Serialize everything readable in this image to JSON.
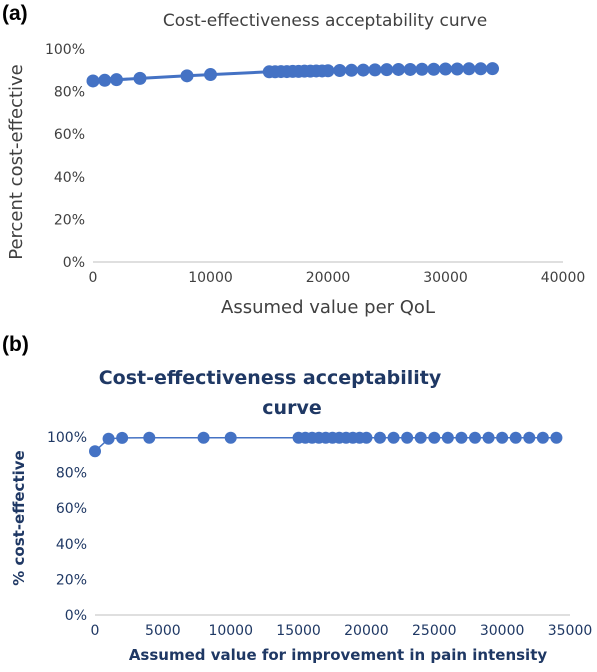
{
  "panels": {
    "a": {
      "label": "(a)"
    },
    "b": {
      "label": "(b)"
    }
  },
  "chart_data": [
    {
      "type": "line",
      "title": "Cost-effectiveness acceptability curve",
      "xlabel": "Assumed value per QoL",
      "ylabel": "Percent cost-effective",
      "xlim": [
        0,
        40000
      ],
      "ylim": [
        0,
        100
      ],
      "x_ticks": [
        "0",
        "10000",
        "20000",
        "30000",
        "40000"
      ],
      "y_ticks": [
        "0%",
        "20%",
        "40%",
        "60%",
        "80%",
        "100%"
      ],
      "grid": false,
      "series": [
        {
          "color": "#4472c4",
          "x": [
            0,
            1000,
            2000,
            4000,
            8000,
            10000,
            15000,
            15500,
            16000,
            16500,
            17000,
            17500,
            18000,
            18500,
            19000,
            19500,
            20000,
            21000,
            22000,
            23000,
            24000,
            25000,
            26000,
            27000,
            28000,
            29000,
            30000,
            31000,
            32000,
            33000,
            34000
          ],
          "y": [
            85,
            85.3,
            85.6,
            86.2,
            87.4,
            88,
            89.3,
            89.3,
            89.4,
            89.4,
            89.5,
            89.5,
            89.6,
            89.6,
            89.7,
            89.7,
            89.8,
            89.9,
            90,
            90.1,
            90.2,
            90.3,
            90.4,
            90.4,
            90.5,
            90.5,
            90.6,
            90.6,
            90.7,
            90.7,
            90.8
          ]
        }
      ]
    },
    {
      "type": "line",
      "title": "Cost-effectiveness acceptability curve",
      "title_lines": [
        "Cost-effectiveness acceptability",
        "curve"
      ],
      "xlabel": "Assumed value for improvement in pain intensity",
      "ylabel": "% cost-effective",
      "xlim": [
        0,
        35000
      ],
      "ylim": [
        0,
        100
      ],
      "x_ticks": [
        "0",
        "5000",
        "10000",
        "15000",
        "20000",
        "25000",
        "30000",
        "35000"
      ],
      "y_ticks": [
        "0%",
        "20%",
        "40%",
        "60%",
        "80%",
        "100%"
      ],
      "grid": false,
      "series": [
        {
          "color": "#4472c4",
          "x": [
            0,
            1000,
            2000,
            4000,
            8000,
            10000,
            15000,
            15500,
            16000,
            16500,
            17000,
            17500,
            18000,
            18500,
            19000,
            19500,
            20000,
            21000,
            22000,
            23000,
            24000,
            25000,
            26000,
            27000,
            28000,
            29000,
            30000,
            31000,
            32000,
            33000,
            34000
          ],
          "y": [
            92,
            99,
            99.5,
            99.6,
            99.6,
            99.6,
            99.6,
            99.6,
            99.6,
            99.6,
            99.6,
            99.6,
            99.6,
            99.6,
            99.6,
            99.6,
            99.6,
            99.6,
            99.6,
            99.6,
            99.6,
            99.6,
            99.6,
            99.6,
            99.6,
            99.6,
            99.6,
            99.6,
            99.6,
            99.6,
            99.6
          ]
        }
      ]
    }
  ]
}
